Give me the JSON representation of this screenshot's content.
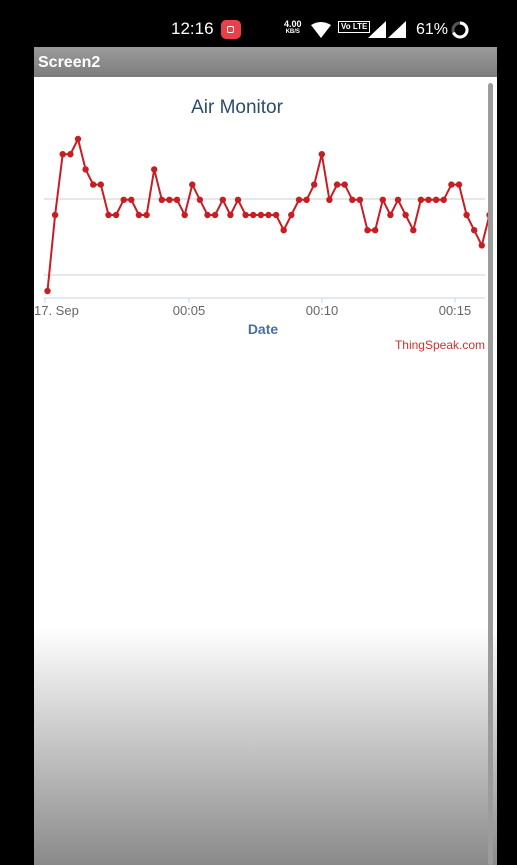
{
  "status_bar": {
    "time": "12:16",
    "speed_value": "4.00",
    "speed_unit": "KB/S",
    "volte": "Vo LTE",
    "battery": "61%"
  },
  "window": {
    "title": "Screen2"
  },
  "credit": "ThingSpeak.com",
  "chart_data": {
    "type": "line",
    "title": "Air Monitor",
    "xlabel": "Date",
    "ylabel": "",
    "x_ticks": [
      "17. Sep",
      "00:05",
      "00:10",
      "00:15"
    ],
    "grid": "horizontal",
    "series_color": "#c81e23",
    "series": [
      {
        "values": [
          0,
          5,
          9,
          9,
          10,
          8,
          7,
          7,
          5,
          5,
          6,
          6,
          5,
          5,
          8,
          6,
          6,
          6,
          5,
          7,
          6,
          5,
          5,
          6,
          5,
          6,
          5,
          5,
          5,
          5,
          5,
          4,
          5,
          6,
          6,
          7,
          9,
          6,
          7,
          7,
          6,
          6,
          4,
          4,
          6,
          5,
          6,
          5,
          4,
          6,
          6,
          6,
          6,
          7,
          7,
          5,
          4,
          3,
          5,
          7
        ]
      }
    ]
  }
}
